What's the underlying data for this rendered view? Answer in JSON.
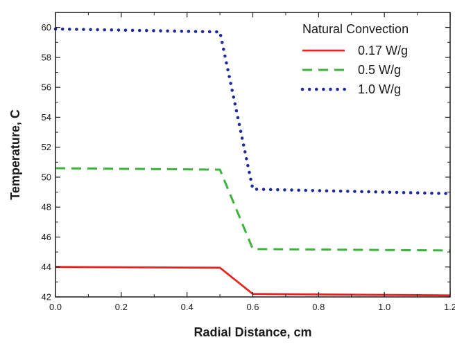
{
  "chart_data": {
    "type": "line",
    "title": "",
    "xlabel": "Radial Distance, cm",
    "ylabel": "Temperature, C",
    "xlim": [
      0.0,
      1.2
    ],
    "ylim": [
      42,
      61
    ],
    "x_ticks": [
      "0.0",
      "0.2",
      "0.4",
      "0.6",
      "0.8",
      "1.0",
      "1.2"
    ],
    "y_ticks": [
      "42",
      "44",
      "46",
      "48",
      "50",
      "52",
      "54",
      "56",
      "58",
      "60"
    ],
    "grid": false,
    "legend": {
      "title": "Natural Convection",
      "placement": "top-right"
    },
    "series": [
      {
        "name": "0.17 W/g",
        "color": "#e8231f",
        "style": "solid",
        "x": [
          0.0,
          0.5,
          0.6,
          1.2
        ],
        "y": [
          44.0,
          43.95,
          42.2,
          42.1
        ]
      },
      {
        "name": "0.5 W/g",
        "color": "#3bb33b",
        "style": "dashed",
        "x": [
          0.0,
          0.5,
          0.6,
          1.2
        ],
        "y": [
          50.6,
          50.5,
          45.2,
          45.1
        ]
      },
      {
        "name": "1.0 W/g",
        "color": "#1c2a9c",
        "style": "dotted",
        "x": [
          0.0,
          0.5,
          0.6,
          1.2
        ],
        "y": [
          59.9,
          59.7,
          49.2,
          48.9
        ]
      }
    ]
  }
}
